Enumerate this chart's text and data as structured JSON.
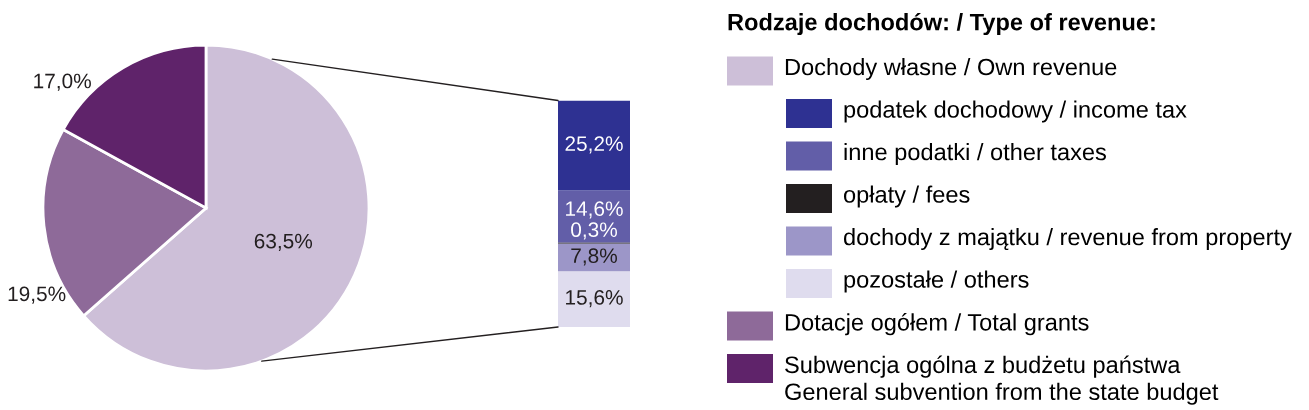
{
  "chart_data": [
    {
      "type": "pie",
      "legend_title": "Rodzaje dochodów: / Type of revenue:",
      "legend": "right",
      "categories": [
        "Dochody własne / Own revenue",
        "Dotacje ogółem / Total grants",
        "Subwencja ogólna z budżetu państwa\nGeneral subvention from the state budget"
      ],
      "values": [
        63.5,
        19.5,
        17.0
      ],
      "colors": [
        "#cdbfd8",
        "#8e6a99",
        "#5f236a"
      ],
      "value_labels": [
        "63,5%",
        "19,5%",
        "17,0%"
      ]
    },
    {
      "type": "bar",
      "stacked": true,
      "legend": "right",
      "tick_labels": false,
      "categories": [
        null
      ],
      "series": [
        {
          "name": "pozostałe / others",
          "color": "#dfdcee",
          "values": [
            15.6
          ],
          "value_labels": [
            "15,6%"
          ]
        },
        {
          "name": "dochody z majątku / revenue from property",
          "color": "#9c96c8",
          "values": [
            7.8
          ],
          "value_labels": [
            "7,8%"
          ]
        },
        {
          "name": "opłaty / fees",
          "color": "#231f20",
          "values": [
            0.3
          ],
          "value_labels": [
            "0,3%"
          ]
        },
        {
          "name": "inne podatki / other taxes",
          "color": "#625ea8",
          "values": [
            14.6
          ],
          "value_labels": [
            "14,6%"
          ]
        },
        {
          "name": "podatek dochodowy / income tax",
          "color": "#2e3192",
          "values": [
            25.2
          ],
          "value_labels": [
            "25,2%"
          ]
        }
      ]
    }
  ]
}
